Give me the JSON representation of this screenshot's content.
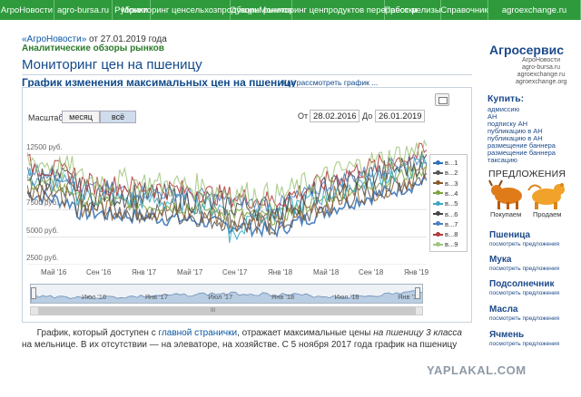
{
  "topnav": [
    {
      "label": "АгроНовости",
      "w": 60
    },
    {
      "label": "agro-bursa.ru",
      "w": 64
    },
    {
      "label": "Рубрики",
      "w": 42
    },
    {
      "label": "Мониторинг цен|сельхозпродукции",
      "w": 88
    },
    {
      "label": "Обзоры рынков",
      "w": 68
    },
    {
      "label": "Мониторинг цен|продуктов переработки",
      "w": 102
    },
    {
      "label": "Пресс-релизы",
      "w": 62
    },
    {
      "label": "Справочник",
      "w": 52
    },
    {
      "label": "agroexchange.ru",
      "w": 102
    }
  ],
  "breadcrumb": {
    "link": "«АгроНовости»",
    "date": " от 27.01.2019 года"
  },
  "subhead": "Аналитические обзоры рынков",
  "page_title": "Мониторинг цен на пшеницу",
  "chart_title": "График изменения максимальных цен на пшеницу",
  "chart_hint": "Как рассмотреть график ...",
  "controls": {
    "zoom_label": "Масштаб",
    "zoom_month": "месяц",
    "zoom_all": "всё",
    "from_label": "От",
    "from_date": "28.02.2016",
    "to_label": "До",
    "to_date": "26.01.2019"
  },
  "chart_data": {
    "type": "line",
    "y_tick_labels": [
      "12500 руб.",
      "7500 руб.",
      "5000 руб.",
      "2500 руб."
    ],
    "y_tick_values": [
      12500,
      7500,
      5000,
      2500
    ],
    "ylim": [
      2500,
      15000
    ],
    "x_tick_labels": [
      "Май '16",
      "Сен '16",
      "Янв '17",
      "Май '17",
      "Сен '17",
      "Янв '18",
      "Май '18",
      "Сен '18",
      "Янв '19"
    ],
    "series": [
      {
        "name": "в...1",
        "color": "#2f6fb7"
      },
      {
        "name": "в...2",
        "color": "#555555"
      },
      {
        "name": "в...3",
        "color": "#8b5a2b"
      },
      {
        "name": "в...4",
        "color": "#7aa640"
      },
      {
        "name": "в...5",
        "color": "#37a9c7"
      },
      {
        "name": "в...6",
        "color": "#444444"
      },
      {
        "name": "в...7",
        "color": "#4b7fc0"
      },
      {
        "name": "в...8",
        "color": "#b23a3a"
      },
      {
        "name": "в...9",
        "color": "#9fc57c"
      }
    ],
    "grid": true,
    "legend": "right"
  },
  "navigator": {
    "labels": [
      "Июл '16",
      "Янв '17",
      "Июл '17",
      "Янв '18",
      "Июл '18",
      "Янв '19"
    ],
    "grip": "III"
  },
  "body_text": {
    "p1": "График, который доступен с ",
    "link": "главной странички",
    "p2": ", отражает максимальные цены ",
    "em": "на пшеницу 3 класса",
    "p3": " на мельнице. В их отсутствии — на элеваторе, на хозяйстве. С 5 ноября 2017 года график на пшеницу"
  },
  "sidebar": {
    "brand": "Агросервис",
    "brand_links": [
      "АгроНовости",
      "agro-bursa.ru",
      "agroexchange.ru",
      "agroexchange.org"
    ],
    "buy_title": "Купить:",
    "buy_items": [
      "адмиссию",
      "АН",
      "подписку АН",
      "публикацию в АН",
      "публикацию в АН",
      "размещение баннера",
      "размещение баннера",
      "таксацию"
    ],
    "offers_title": "ПРЕДЛОЖЕНИЯ",
    "buy_label": "Покупаем",
    "sell_label": "Продаем",
    "categories": [
      {
        "title": "Пшеница",
        "sub": "посмотреть предложения"
      },
      {
        "title": "Мука",
        "sub": "посмотреть предложения"
      },
      {
        "title": "Подсолнечник",
        "sub": "посмотреть предложения"
      },
      {
        "title": "Масла",
        "sub": "посмотреть предложения"
      },
      {
        "title": "Ячмень",
        "sub": "посмотреть предложения"
      }
    ]
  },
  "watermark": "YAPLAKAL.COM"
}
